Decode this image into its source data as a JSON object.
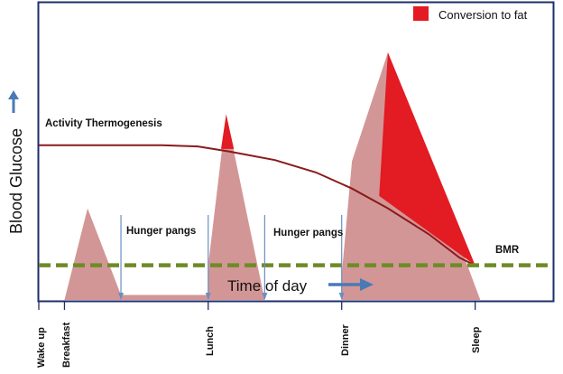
{
  "chart_data": {
    "type": "area",
    "title": "",
    "xlabel": "Time of day",
    "ylabel": "Blood Glucose",
    "xlim": [
      0,
      100
    ],
    "ylim": [
      0,
      100
    ],
    "x_ticks": [
      {
        "label": "Wake up",
        "x": 0
      },
      {
        "label": "Breakfast",
        "x": 5
      },
      {
        "label": "Lunch",
        "x": 33
      },
      {
        "label": "Dinner",
        "x": 59
      },
      {
        "label": "Sleep",
        "x": 85
      }
    ],
    "legend": {
      "label": "Conversion to fat",
      "color": "#e31b23",
      "position": "top-right"
    },
    "series": [
      {
        "name": "Blood glucose",
        "color": "#d39696",
        "x": [
          5,
          9.5,
          16,
          16,
          33,
          33,
          36.5,
          44,
          44,
          59,
          59,
          61,
          68,
          86,
          86,
          100
        ],
        "y": [
          0,
          37,
          2,
          2,
          2,
          14,
          75,
          0,
          0,
          0,
          10,
          56,
          100,
          0,
          0,
          0
        ]
      },
      {
        "name": "Activity Thermogenesis",
        "color": "#8b1a1a",
        "x": [
          0,
          11,
          24,
          31,
          37,
          46,
          54,
          61,
          68,
          76,
          82,
          85
        ],
        "y": [
          62.5,
          62.5,
          62.5,
          62,
          60,
          56.5,
          51.5,
          45,
          37,
          26.5,
          17,
          14
        ]
      },
      {
        "name": "BMR",
        "color": "#6e8b28",
        "style": "dashed",
        "x": [
          0,
          100
        ],
        "y": [
          14,
          14
        ]
      }
    ],
    "conversion_to_fat_regions": [
      {
        "x": [
          36.5,
          38,
          35.5
        ],
        "y": [
          75,
          61,
          61
        ]
      },
      {
        "x": [
          66.3,
          68,
          85
        ],
        "y": [
          42,
          100,
          14
        ]
      }
    ],
    "annotations": [
      {
        "text": "Activity  Thermogenesis"
      },
      {
        "text": "Hunger pangs"
      },
      {
        "text": "Hunger pangs"
      },
      {
        "text": "BMR"
      }
    ],
    "arrow_markers": {
      "meal_times": [
        16,
        33,
        44,
        59
      ]
    }
  }
}
